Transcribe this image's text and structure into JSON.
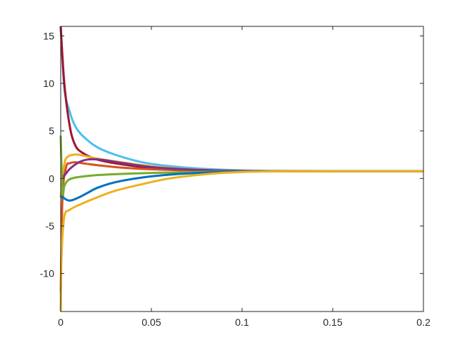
{
  "chart_data": {
    "type": "line",
    "title": "",
    "xlabel": "",
    "ylabel": "",
    "xlim": [
      0,
      0.2
    ],
    "ylim": [
      -14,
      16
    ],
    "xticks": [
      0,
      0.05,
      0.1,
      0.15,
      0.2
    ],
    "xtick_labels": [
      "0",
      "0.05",
      "0.1",
      "0.15",
      "0.2"
    ],
    "yticks": [
      -10,
      -5,
      0,
      5,
      10,
      15
    ],
    "ytick_labels": [
      "-10",
      "-5",
      "0",
      "5",
      "10",
      "15"
    ],
    "grid": false,
    "legend": "none",
    "steady_value": 0.75,
    "series": [
      {
        "color": "#4dbeee",
        "x": [
          0,
          0.002,
          0.005,
          0.008,
          0.012,
          0.02,
          0.03,
          0.045,
          0.06,
          0.08,
          0.1,
          0.12,
          0.15,
          0.2
        ],
        "y": [
          16,
          9.5,
          7.0,
          5.5,
          4.5,
          3.3,
          2.5,
          1.7,
          1.3,
          1.0,
          0.85,
          0.78,
          0.75,
          0.75
        ]
      },
      {
        "color": "#a2142f",
        "x": [
          0,
          0.002,
          0.005,
          0.008,
          0.012,
          0.02,
          0.03,
          0.045,
          0.06,
          0.08,
          0.1,
          0.12,
          0.15,
          0.2
        ],
        "y": [
          16,
          10.0,
          5.5,
          3.5,
          2.7,
          2.0,
          1.6,
          1.2,
          1.0,
          0.85,
          0.78,
          0.76,
          0.75,
          0.75
        ]
      },
      {
        "color": "#edb120",
        "x": [
          0,
          0.002,
          0.004,
          0.007,
          0.01,
          0.015,
          0.02,
          0.03,
          0.045,
          0.06,
          0.08,
          0.1,
          0.12,
          0.15,
          0.2
        ],
        "y": [
          -2,
          1.5,
          2.3,
          2.5,
          2.5,
          2.3,
          2.1,
          1.8,
          1.4,
          1.1,
          0.9,
          0.8,
          0.76,
          0.75,
          0.75
        ]
      },
      {
        "color": "#d95319",
        "x": [
          0,
          0.001,
          0.003,
          0.005,
          0.008,
          0.012,
          0.02,
          0.03,
          0.045,
          0.06,
          0.08,
          0.1,
          0.12,
          0.15,
          0.2
        ],
        "y": [
          -12,
          -2,
          1.2,
          1.6,
          1.7,
          1.6,
          1.4,
          1.2,
          1.0,
          0.9,
          0.8,
          0.77,
          0.75,
          0.75,
          0.75
        ]
      },
      {
        "color": "#7e2f8e",
        "x": [
          0,
          0.002,
          0.005,
          0.01,
          0.015,
          0.02,
          0.025,
          0.035,
          0.05,
          0.07,
          0.09,
          0.11,
          0.15,
          0.2
        ],
        "y": [
          0,
          0.3,
          1.0,
          1.7,
          2.0,
          2.0,
          1.9,
          1.6,
          1.2,
          0.95,
          0.82,
          0.77,
          0.75,
          0.75
        ]
      },
      {
        "color": "#77ac30",
        "x": [
          0,
          0.001,
          0.002,
          0.004,
          0.007,
          0.012,
          0.02,
          0.03,
          0.045,
          0.06,
          0.08,
          0.1,
          0.12,
          0.15,
          0.2
        ],
        "y": [
          4.5,
          -1.5,
          -0.8,
          -0.2,
          0.05,
          0.2,
          0.35,
          0.45,
          0.55,
          0.62,
          0.7,
          0.73,
          0.75,
          0.75,
          0.75
        ]
      },
      {
        "color": "#0072bd",
        "x": [
          0,
          0.001,
          0.002,
          0.004,
          0.006,
          0.01,
          0.015,
          0.02,
          0.03,
          0.045,
          0.06,
          0.08,
          0.1,
          0.12,
          0.15,
          0.2
        ],
        "y": [
          -2,
          -1.9,
          -2.1,
          -2.3,
          -2.3,
          -2.0,
          -1.5,
          -1.0,
          -0.4,
          0.1,
          0.4,
          0.62,
          0.72,
          0.75,
          0.75,
          0.75
        ]
      },
      {
        "color": "#edb120",
        "x": [
          0,
          0.0005,
          0.002,
          0.005,
          0.01,
          0.02,
          0.03,
          0.045,
          0.06,
          0.08,
          0.1,
          0.12,
          0.15,
          0.2
        ],
        "y": [
          -14,
          -8,
          -4.0,
          -3.3,
          -2.8,
          -2.0,
          -1.3,
          -0.6,
          0.0,
          0.45,
          0.68,
          0.74,
          0.75,
          0.75
        ]
      }
    ]
  }
}
